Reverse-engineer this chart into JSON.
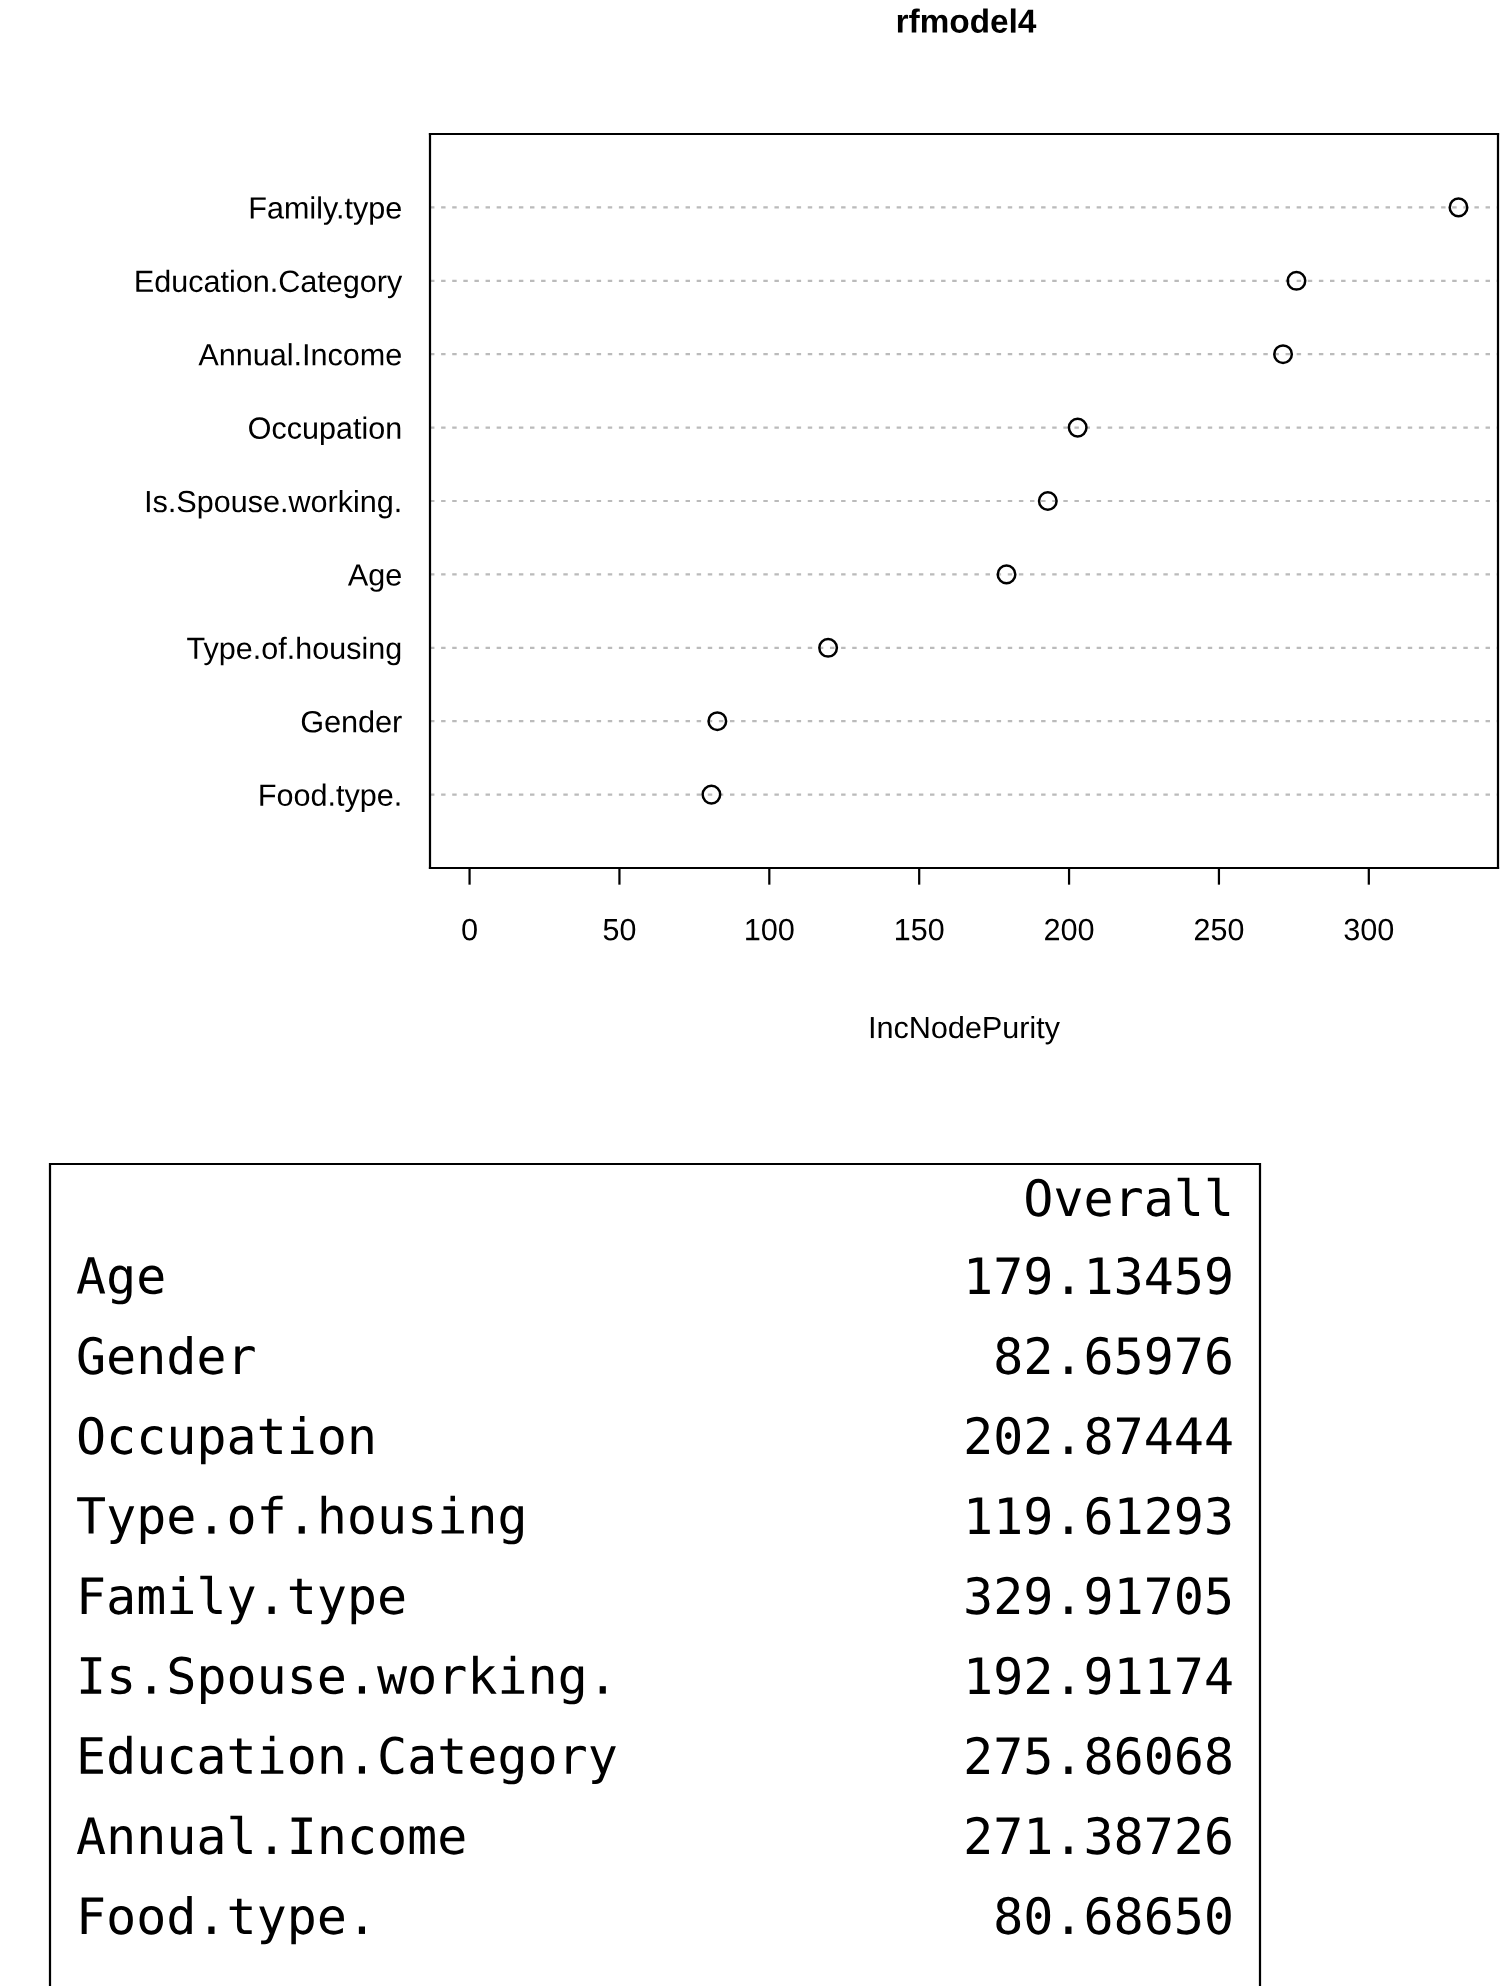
{
  "chart_data": [
    {
      "type": "scatter",
      "title": "rfmodel4",
      "xlabel": "IncNodePurity",
      "orientation": "horizontal",
      "categories": [
        "Family.type",
        "Education.Category",
        "Annual.Income",
        "Occupation",
        "Is.Spouse.working.",
        "Age",
        "Type.of.housing",
        "Gender",
        "Food.type."
      ],
      "values": [
        329.91705,
        275.86068,
        271.38726,
        202.87444,
        192.91174,
        179.13459,
        119.61293,
        82.65976,
        80.6865
      ],
      "color": "#000000",
      "marker": "circle",
      "grid": "y",
      "xlim": [
        -13.2,
        343.1
      ],
      "xticks": [
        0,
        50,
        100,
        150,
        200,
        250,
        300
      ]
    },
    {
      "type": "other",
      "title": "Overall",
      "categories": [
        "Age",
        "Gender",
        "Occupation",
        "Type.of.housing",
        "Family.type",
        "Is.Spouse.working.",
        "Education.Category",
        "Annual.Income",
        "Food.type."
      ],
      "value_labels": [
        "179.13459",
        "82.65976",
        "202.87444",
        "119.61293",
        "329.91705",
        "192.91174",
        "275.86068",
        "271.38726",
        "80.68650"
      ]
    }
  ]
}
